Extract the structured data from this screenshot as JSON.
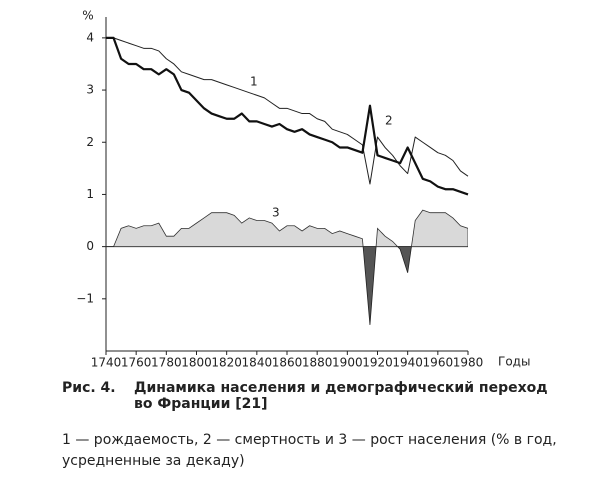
{
  "chart_data": {
    "type": "line",
    "y_unit_label": "%",
    "x_axis_label": "Годы",
    "caption_label": "Рис. 4.",
    "title": "Динамика населения и демографический переход во Франции [21]",
    "subtitle": "1 — рождаемость, 2 — смертность и 3 — рост населения (% в год, усредненные за декаду)",
    "x": [
      1740,
      1745,
      1750,
      1755,
      1760,
      1765,
      1770,
      1775,
      1780,
      1785,
      1790,
      1795,
      1800,
      1805,
      1810,
      1815,
      1820,
      1825,
      1830,
      1835,
      1840,
      1845,
      1850,
      1855,
      1860,
      1865,
      1870,
      1875,
      1880,
      1885,
      1890,
      1895,
      1900,
      1905,
      1910,
      1915,
      1920,
      1925,
      1930,
      1935,
      1940,
      1945,
      1950,
      1955,
      1960,
      1965,
      1970,
      1975,
      1980
    ],
    "series": [
      {
        "name": "1",
        "style": "line",
        "color": "#222222",
        "width": 1,
        "values": [
          4.0,
          4.0,
          3.95,
          3.9,
          3.85,
          3.8,
          3.8,
          3.75,
          3.6,
          3.5,
          3.35,
          3.3,
          3.25,
          3.2,
          3.2,
          3.15,
          3.1,
          3.05,
          3.0,
          2.95,
          2.9,
          2.85,
          2.75,
          2.65,
          2.65,
          2.6,
          2.55,
          2.55,
          2.45,
          2.4,
          2.25,
          2.2,
          2.15,
          2.05,
          1.95,
          1.2,
          2.1,
          1.9,
          1.75,
          1.55,
          1.4,
          2.1,
          2.0,
          1.9,
          1.8,
          1.75,
          1.65,
          1.45,
          1.35
        ]
      },
      {
        "name": "2",
        "style": "line",
        "color": "#111111",
        "width": 2.2,
        "values": [
          4.0,
          4.0,
          3.6,
          3.5,
          3.5,
          3.4,
          3.4,
          3.3,
          3.4,
          3.3,
          3.0,
          2.95,
          2.8,
          2.65,
          2.55,
          2.5,
          2.45,
          2.45,
          2.55,
          2.4,
          2.4,
          2.35,
          2.3,
          2.35,
          2.25,
          2.2,
          2.25,
          2.15,
          2.1,
          2.05,
          2.0,
          1.9,
          1.9,
          1.85,
          1.8,
          2.7,
          1.75,
          1.7,
          1.65,
          1.6,
          1.9,
          1.6,
          1.3,
          1.25,
          1.15,
          1.1,
          1.1,
          1.05,
          1.0
        ]
      },
      {
        "name": "3",
        "style": "area",
        "color": "#d9d9d9",
        "negative_color": "#555555",
        "values": [
          0,
          0,
          0.35,
          0.4,
          0.35,
          0.4,
          0.4,
          0.45,
          0.2,
          0.2,
          0.35,
          0.35,
          0.45,
          0.55,
          0.65,
          0.65,
          0.65,
          0.6,
          0.45,
          0.55,
          0.5,
          0.5,
          0.45,
          0.3,
          0.4,
          0.4,
          0.3,
          0.4,
          0.35,
          0.35,
          0.25,
          0.3,
          0.25,
          0.2,
          0.15,
          -1.5,
          0.35,
          0.2,
          0.1,
          -0.05,
          -0.5,
          0.5,
          0.7,
          0.65,
          0.65,
          0.65,
          0.55,
          0.4,
          0.35
        ]
      }
    ],
    "xlim": [
      1740,
      1980
    ],
    "xticks": [
      1740,
      1760,
      1780,
      1800,
      1820,
      1840,
      1860,
      1880,
      1900,
      1920,
      1940,
      1960,
      1980
    ],
    "ylim": [
      -2,
      4.4
    ],
    "yticks": [
      4,
      3,
      2,
      1,
      0,
      {
        "value": -1,
        "label": "−1"
      }
    ],
    "grid": false
  }
}
